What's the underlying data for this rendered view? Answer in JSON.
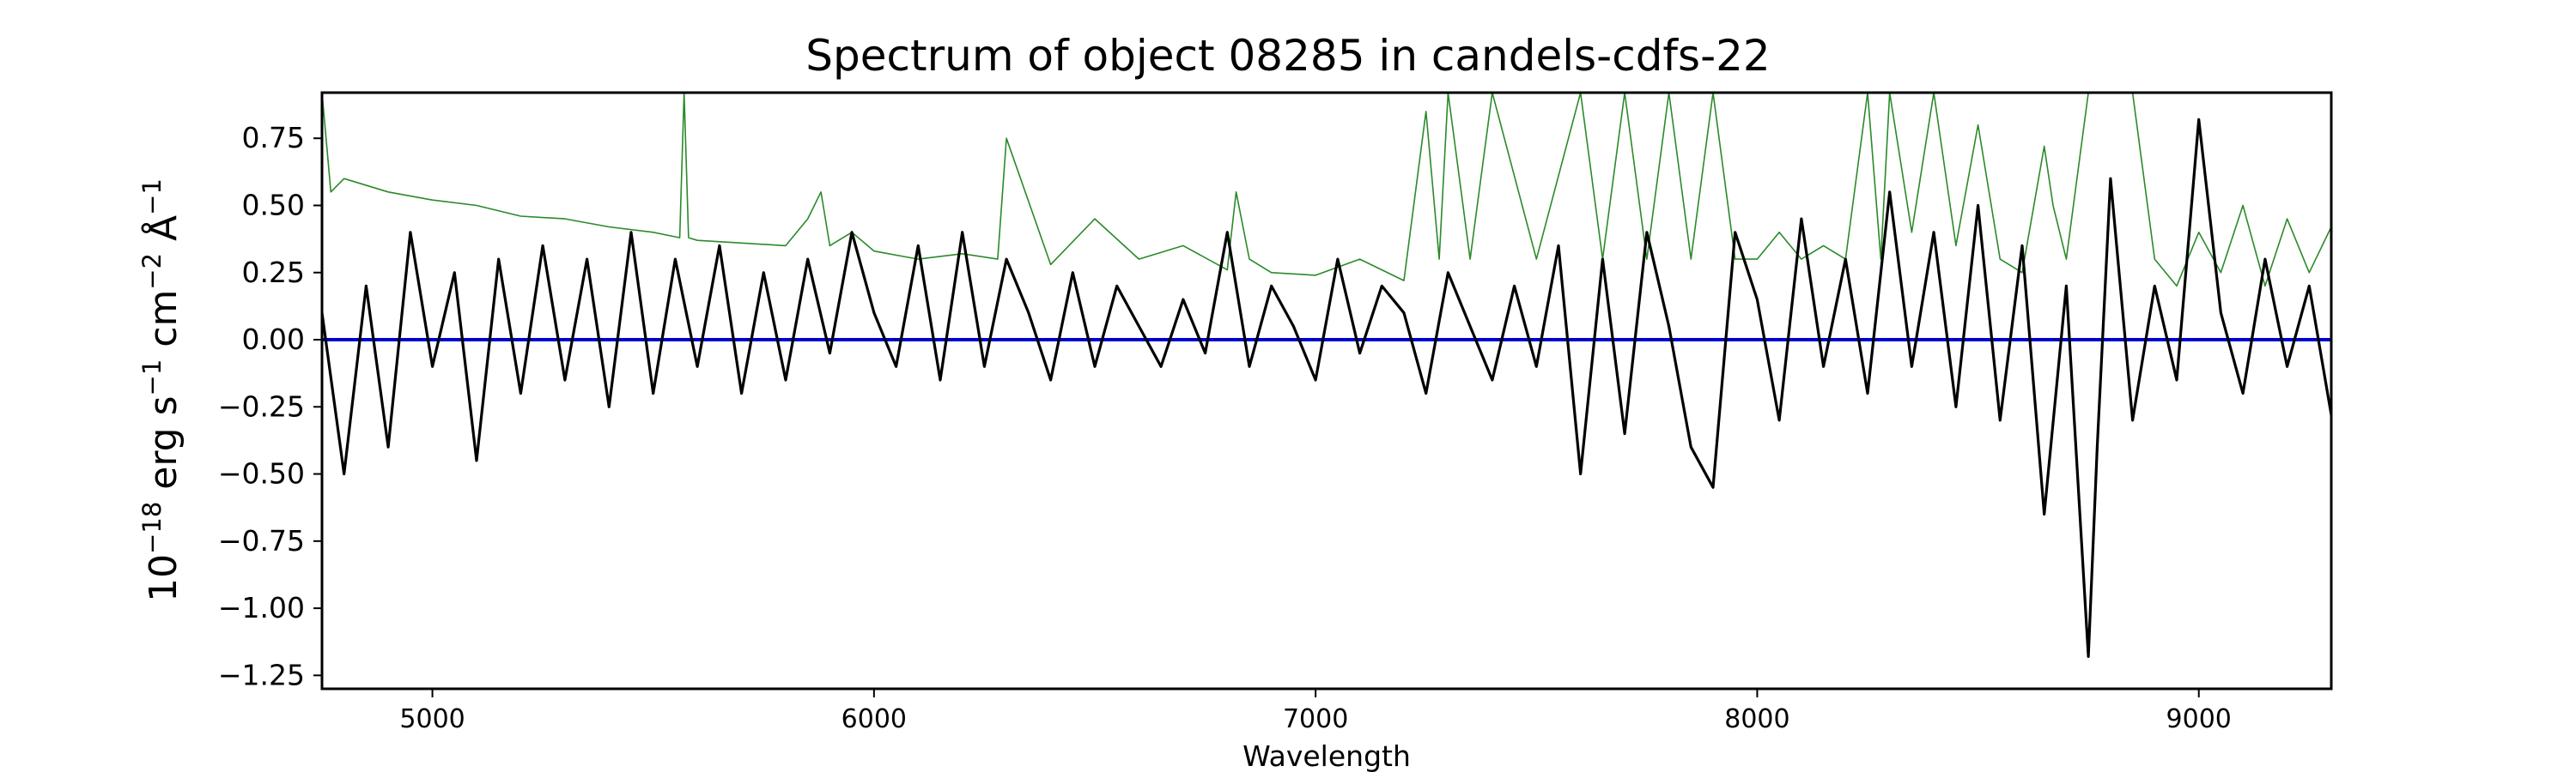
{
  "chart_data": {
    "type": "line",
    "title": "Spectrum of object 08285 in candels-cdfs-22",
    "xlabel": "Wavelength",
    "ylabel": {
      "prefix": "10",
      "exp1": "−18",
      "part_erg": " erg s",
      "exp2": "−1",
      "part_cm": " cm",
      "exp3": "−2",
      "part_ang": " Å",
      "exp4": "−1"
    },
    "xlim": [
      4750,
      9300
    ],
    "ylim": [
      -1.3,
      0.92
    ],
    "xticks": [
      5000,
      6000,
      7000,
      8000,
      9000
    ],
    "xtick_labels": [
      "5000",
      "6000",
      "7000",
      "8000",
      "9000"
    ],
    "yticks": [
      0.75,
      0.5,
      0.25,
      0.0,
      -0.25,
      -0.5,
      -0.75,
      -1.0,
      -1.25
    ],
    "ytick_labels": [
      "0.75",
      "0.50",
      "0.25",
      "0.00",
      "−0.25",
      "−0.50",
      "−0.75",
      "−1.00",
      "−1.25"
    ],
    "grid": false,
    "colors": {
      "flux": "#000000",
      "error": "#2a8a2a",
      "continuum": "#0000cc",
      "axes": "#000000"
    },
    "series": [
      {
        "role": "flux",
        "description_visible": "black noisy spectrum line",
        "x": [
          4750,
          4800,
          4850,
          4900,
          4950,
          5000,
          5050,
          5100,
          5150,
          5200,
          5250,
          5300,
          5350,
          5400,
          5450,
          5500,
          5550,
          5600,
          5650,
          5700,
          5750,
          5800,
          5850,
          5900,
          5950,
          6000,
          6050,
          6100,
          6150,
          6200,
          6250,
          6300,
          6350,
          6400,
          6450,
          6500,
          6550,
          6600,
          6650,
          6700,
          6750,
          6800,
          6850,
          6900,
          6950,
          7000,
          7050,
          7100,
          7150,
          7200,
          7250,
          7300,
          7350,
          7400,
          7450,
          7500,
          7550,
          7600,
          7650,
          7700,
          7750,
          7800,
          7850,
          7900,
          7950,
          8000,
          8050,
          8100,
          8150,
          8200,
          8250,
          8300,
          8350,
          8400,
          8450,
          8500,
          8550,
          8600,
          8650,
          8700,
          8750,
          8770,
          8800,
          8850,
          8900,
          8950,
          9000,
          9050,
          9100,
          9150,
          9200,
          9250,
          9300
        ],
        "y": [
          0.1,
          -0.5,
          0.2,
          -0.4,
          0.4,
          -0.1,
          0.25,
          -0.45,
          0.3,
          -0.2,
          0.35,
          -0.15,
          0.3,
          -0.25,
          0.4,
          -0.2,
          0.3,
          -0.1,
          0.35,
          -0.2,
          0.25,
          -0.15,
          0.3,
          -0.05,
          0.4,
          0.1,
          -0.1,
          0.35,
          -0.15,
          0.4,
          -0.1,
          0.3,
          0.1,
          -0.15,
          0.25,
          -0.1,
          0.2,
          0.05,
          -0.1,
          0.15,
          -0.05,
          0.4,
          -0.1,
          0.2,
          0.05,
          -0.15,
          0.3,
          -0.05,
          0.2,
          0.1,
          -0.2,
          0.25,
          0.05,
          -0.15,
          0.2,
          -0.1,
          0.35,
          -0.5,
          0.3,
          -0.35,
          0.4,
          0.05,
          -0.4,
          -0.55,
          0.4,
          0.15,
          -0.3,
          0.45,
          -0.1,
          0.3,
          -0.2,
          0.55,
          -0.1,
          0.4,
          -0.25,
          0.5,
          -0.3,
          0.35,
          -0.65,
          0.2,
          -1.18,
          -0.4,
          0.6,
          -0.3,
          0.2,
          -0.15,
          0.82,
          0.1,
          -0.2,
          0.3,
          -0.1,
          0.2,
          -0.28
        ]
      },
      {
        "role": "error",
        "description_visible": "thin green upper error line",
        "x": [
          4750,
          4770,
          4800,
          4900,
          5000,
          5100,
          5200,
          5300,
          5400,
          5500,
          5560,
          5570,
          5580,
          5600,
          5700,
          5800,
          5850,
          5880,
          5900,
          5950,
          6000,
          6100,
          6200,
          6280,
          6300,
          6400,
          6500,
          6600,
          6700,
          6800,
          6820,
          6850,
          6900,
          7000,
          7100,
          7200,
          7250,
          7280,
          7300,
          7350,
          7400,
          7500,
          7600,
          7650,
          7700,
          7750,
          7800,
          7850,
          7900,
          7950,
          8000,
          8050,
          8100,
          8150,
          8200,
          8250,
          8280,
          8300,
          8350,
          8400,
          8450,
          8500,
          8550,
          8600,
          8650,
          8670,
          8700,
          8750,
          8800,
          8850,
          8900,
          8950,
          9000,
          9050,
          9100,
          9150,
          9200,
          9250,
          9300
        ],
        "y": [
          0.92,
          0.55,
          0.6,
          0.55,
          0.52,
          0.5,
          0.46,
          0.45,
          0.42,
          0.4,
          0.38,
          0.92,
          0.38,
          0.37,
          0.36,
          0.35,
          0.45,
          0.55,
          0.35,
          0.4,
          0.33,
          0.3,
          0.32,
          0.3,
          0.75,
          0.28,
          0.45,
          0.3,
          0.35,
          0.26,
          0.55,
          0.3,
          0.25,
          0.24,
          0.3,
          0.22,
          0.85,
          0.3,
          0.92,
          0.3,
          0.92,
          0.3,
          0.92,
          0.3,
          0.92,
          0.3,
          0.92,
          0.3,
          0.92,
          0.3,
          0.3,
          0.4,
          0.3,
          0.35,
          0.3,
          0.92,
          0.3,
          0.92,
          0.4,
          0.92,
          0.35,
          0.8,
          0.3,
          0.25,
          0.72,
          0.5,
          0.3,
          0.92,
          0.92,
          0.92,
          0.3,
          0.2,
          0.4,
          0.25,
          0.5,
          0.2,
          0.45,
          0.25,
          0.42
        ]
      },
      {
        "role": "continuum",
        "description_visible": "blue zero-level line",
        "x": [
          4750,
          9300
        ],
        "y": [
          0.0,
          0.0
        ]
      }
    ]
  }
}
